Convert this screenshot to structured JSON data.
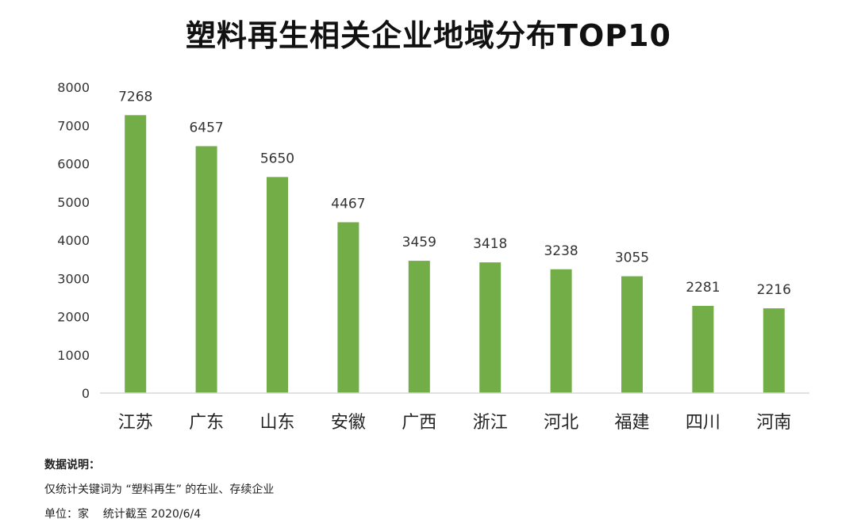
{
  "title": "塑料再生相关企业地域分布TOP10",
  "chart_data": {
    "type": "bar",
    "title": "塑料再生相关企业地域分布TOP10",
    "categories": [
      "江苏",
      "广东",
      "山东",
      "安徽",
      "广西",
      "浙江",
      "河北",
      "福建",
      "四川",
      "河南"
    ],
    "values": [
      7268,
      6457,
      5650,
      4467,
      3459,
      3418,
      3238,
      3055,
      2281,
      2216
    ],
    "ylim": [
      0,
      8000
    ],
    "yticks": [
      0,
      1000,
      2000,
      3000,
      4000,
      5000,
      6000,
      7000,
      8000
    ],
    "grid": false,
    "bar_color": "#72ad47"
  },
  "notes": {
    "heading": "数据说明：",
    "line1": "仅统计关键词为 “塑料再生” 的在业、存续企业",
    "line2": "单位：家    统计截至 2020/6/4"
  }
}
